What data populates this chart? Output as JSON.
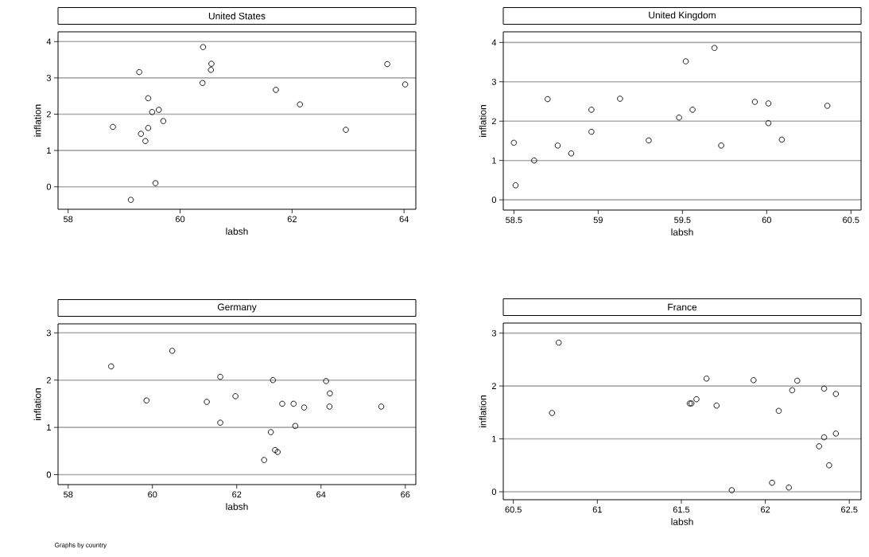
{
  "chart_data": [
    {
      "type": "scatter",
      "title": "United States",
      "xlabel": "labsh",
      "ylabel": "inflation",
      "color": "#000000",
      "marker": "circle",
      "grid": "y",
      "x": [
        60.41,
        60.56,
        60.55,
        59.27,
        60.4,
        63.7,
        64.02,
        61.71,
        62.14,
        59.43,
        59.62,
        59.5,
        59.7,
        58.8,
        59.43,
        59.3,
        59.38,
        62.96,
        59.56,
        59.12
      ],
      "values": [
        3.85,
        3.39,
        3.22,
        3.16,
        2.86,
        3.38,
        2.82,
        2.67,
        2.27,
        2.44,
        2.12,
        2.06,
        1.81,
        1.65,
        1.62,
        1.46,
        1.26,
        1.57,
        0.1,
        -0.36
      ],
      "xlim": [
        57.82,
        64.21
      ],
      "ylim": [
        -0.62,
        4.27
      ],
      "xticks": [
        58,
        60,
        62,
        64
      ],
      "yticks": [
        0,
        1,
        2,
        3,
        4
      ]
    },
    {
      "type": "scatter",
      "title": "United Kingdom",
      "xlabel": "labsh",
      "ylabel": "inflation",
      "color": "#000000",
      "marker": "circle",
      "grid": "y",
      "x": [
        58.5,
        58.51,
        58.62,
        58.7,
        58.76,
        58.84,
        58.96,
        58.96,
        59.13,
        59.3,
        59.48,
        59.52,
        59.56,
        59.69,
        59.73,
        59.93,
        60.01,
        60.01,
        60.09,
        60.36
      ],
      "values": [
        1.45,
        0.37,
        1.0,
        2.56,
        1.38,
        1.18,
        2.29,
        1.73,
        2.57,
        1.51,
        2.09,
        3.52,
        2.29,
        3.86,
        1.38,
        2.49,
        2.45,
        1.95,
        1.53,
        2.39
      ],
      "xlim": [
        58.437,
        60.56
      ],
      "ylim": [
        -0.26,
        4.27
      ],
      "xticks": [
        58.5,
        59,
        59.5,
        60,
        60.5
      ],
      "yticks": [
        0,
        1,
        2,
        3,
        4
      ]
    },
    {
      "type": "scatter",
      "title": "Germany",
      "xlabel": "labsh",
      "ylabel": "inflation",
      "color": "#000000",
      "marker": "circle",
      "grid": "y",
      "x": [
        59.02,
        60.47,
        59.86,
        61.29,
        61.61,
        61.61,
        61.97,
        62.86,
        62.81,
        63.08,
        63.35,
        63.6,
        63.39,
        62.91,
        62.97,
        62.65,
        64.12,
        64.21,
        64.2,
        65.43
      ],
      "values": [
        2.29,
        2.62,
        1.57,
        1.54,
        2.07,
        1.1,
        1.66,
        2.0,
        0.9,
        1.5,
        1.5,
        1.42,
        1.03,
        0.52,
        0.48,
        0.31,
        1.98,
        1.72,
        1.44,
        1.44
      ],
      "xlim": [
        57.76,
        66.25
      ],
      "ylim": [
        -0.21,
        3.19
      ],
      "xticks": [
        58,
        60,
        62,
        64,
        66
      ],
      "yticks": [
        0,
        1,
        2,
        3
      ],
      "annotations": [
        "Graphs by country"
      ]
    },
    {
      "type": "scatter",
      "title": "France",
      "xlabel": "labsh",
      "ylabel": "inflation",
      "color": "#000000",
      "marker": "circle",
      "grid": "y",
      "x": [
        60.73,
        60.77,
        61.55,
        61.56,
        61.59,
        61.65,
        61.71,
        61.8,
        61.93,
        62.04,
        62.08,
        62.14,
        62.16,
        62.19,
        62.32,
        62.35,
        62.35,
        62.38,
        62.42,
        62.42
      ],
      "values": [
        1.49,
        2.82,
        1.67,
        1.67,
        1.75,
        2.14,
        1.63,
        0.03,
        2.11,
        0.17,
        1.53,
        0.08,
        1.92,
        2.1,
        0.86,
        1.03,
        1.95,
        0.5,
        1.1,
        1.85
      ],
      "xlim": [
        60.44,
        62.57
      ],
      "ylim": [
        -0.15,
        3.19
      ],
      "xticks": [
        60.5,
        61,
        61.5,
        62,
        62.5
      ],
      "yticks": [
        0,
        1,
        2,
        3
      ]
    }
  ]
}
